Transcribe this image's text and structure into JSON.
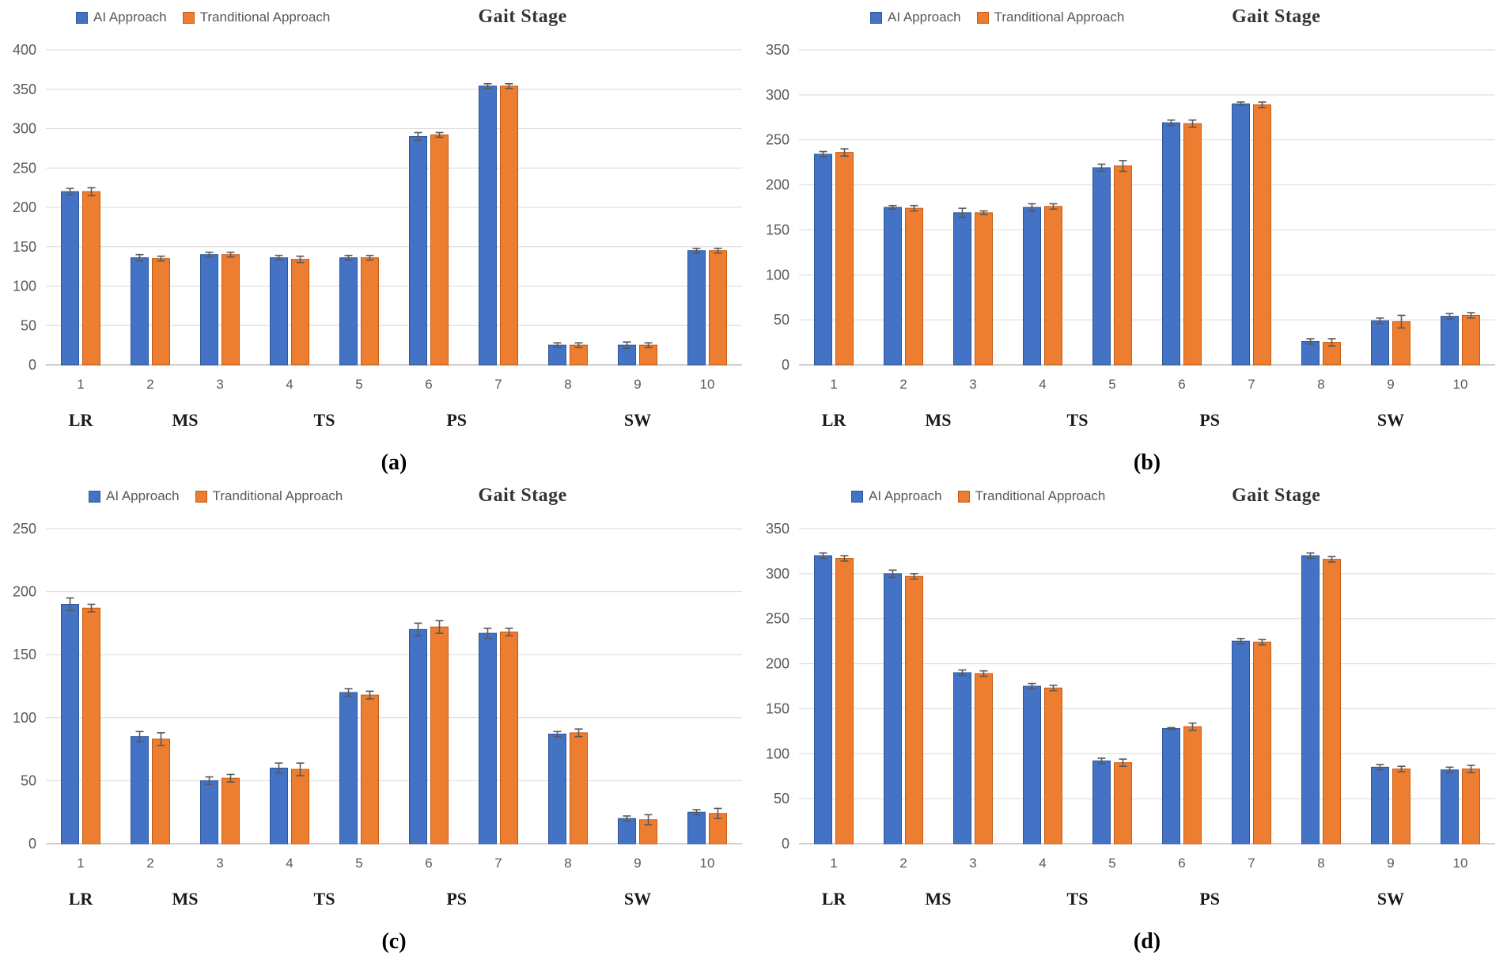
{
  "title": "Gait Stage",
  "legend": {
    "series1": "AI Approach",
    "series2": "Tranditional Approach"
  },
  "colors": {
    "blue_fill": "#4472C4",
    "blue_edge": "#2F5597",
    "orange_fill": "#ED7D31",
    "orange_edge": "#C55A11",
    "grid": "#D9D9D9",
    "baseline": "#BFBFBF",
    "axis_text": "#595959",
    "error_bar": "#595959",
    "title_text": "#333333",
    "label_text": "#1a1a1a"
  },
  "chart_data": [
    {
      "type": "bar",
      "panel_label": "(a)",
      "title": "Gait Stage",
      "categories": [
        "1",
        "2",
        "3",
        "4",
        "5",
        "6",
        "7",
        "8",
        "9",
        "10"
      ],
      "group_labels": [
        {
          "text": "LR",
          "at": 1
        },
        {
          "text": "MS",
          "at": 2.5
        },
        {
          "text": "TS",
          "at": 4.5
        },
        {
          "text": "PS",
          "at": 6.4
        },
        {
          "text": "SW",
          "at": 9
        }
      ],
      "ylim": [
        0,
        400
      ],
      "ytick_step": 50,
      "grid": true,
      "legend_position": "top-left",
      "series": [
        {
          "name": "AI Approach",
          "values": [
            220,
            136,
            140,
            136,
            136,
            290,
            354,
            25,
            25,
            145
          ],
          "errors": [
            4,
            4,
            3,
            3,
            3,
            5,
            3,
            3,
            4,
            3
          ]
        },
        {
          "name": "Tranditional Approach",
          "values": [
            220,
            135,
            140,
            134,
            136,
            292,
            354,
            25,
            25,
            145
          ],
          "errors": [
            5,
            3,
            3,
            4,
            3,
            3,
            3,
            3,
            3,
            3
          ]
        }
      ]
    },
    {
      "type": "bar",
      "panel_label": "(b)",
      "title": "Gait Stage",
      "categories": [
        "1",
        "2",
        "3",
        "4",
        "5",
        "6",
        "7",
        "8",
        "9",
        "10"
      ],
      "group_labels": [
        {
          "text": "LR",
          "at": 1
        },
        {
          "text": "MS",
          "at": 2.5
        },
        {
          "text": "TS",
          "at": 4.5
        },
        {
          "text": "PS",
          "at": 6.4
        },
        {
          "text": "SW",
          "at": 9
        }
      ],
      "ylim": [
        0,
        350
      ],
      "ytick_step": 50,
      "grid": true,
      "legend_position": "top-left",
      "series": [
        {
          "name": "AI Approach",
          "values": [
            234,
            175,
            169,
            175,
            219,
            269,
            290,
            26,
            49,
            54
          ],
          "errors": [
            3,
            2,
            5,
            4,
            4,
            3,
            2,
            3,
            3,
            3
          ]
        },
        {
          "name": "Tranditional Approach",
          "values": [
            236,
            174,
            169,
            176,
            221,
            268,
            289,
            25,
            48,
            55
          ],
          "errors": [
            4,
            3,
            2,
            3,
            6,
            4,
            3,
            4,
            7,
            3
          ]
        }
      ]
    },
    {
      "type": "bar",
      "panel_label": "(c)",
      "title": "Gait Stage",
      "categories": [
        "1",
        "2",
        "3",
        "4",
        "5",
        "6",
        "7",
        "8",
        "9",
        "10"
      ],
      "group_labels": [
        {
          "text": "LR",
          "at": 1
        },
        {
          "text": "MS",
          "at": 2.5
        },
        {
          "text": "TS",
          "at": 4.5
        },
        {
          "text": "PS",
          "at": 6.4
        },
        {
          "text": "SW",
          "at": 9
        }
      ],
      "ylim": [
        0,
        250
      ],
      "ytick_step": 50,
      "grid": true,
      "legend_position": "top-left",
      "series": [
        {
          "name": "AI Approach",
          "values": [
            190,
            85,
            50,
            60,
            120,
            170,
            167,
            87,
            20,
            25
          ],
          "errors": [
            5,
            4,
            3,
            4,
            3,
            5,
            4,
            2,
            2,
            2
          ]
        },
        {
          "name": "Tranditional Approach",
          "values": [
            187,
            83,
            52,
            59,
            118,
            172,
            168,
            88,
            19,
            24
          ],
          "errors": [
            3,
            5,
            3,
            5,
            3,
            5,
            3,
            3,
            4,
            4
          ]
        }
      ]
    },
    {
      "type": "bar",
      "panel_label": "(d)",
      "title": "Gait Stage",
      "categories": [
        "1",
        "2",
        "3",
        "4",
        "5",
        "6",
        "7",
        "8",
        "9",
        "10"
      ],
      "group_labels": [
        {
          "text": "LR",
          "at": 1
        },
        {
          "text": "MS",
          "at": 2.5
        },
        {
          "text": "TS",
          "at": 4.5
        },
        {
          "text": "PS",
          "at": 6.4
        },
        {
          "text": "SW",
          "at": 9
        }
      ],
      "ylim": [
        0,
        350
      ],
      "ytick_step": 50,
      "grid": true,
      "legend_position": "top-left",
      "series": [
        {
          "name": "AI Approach",
          "values": [
            320,
            300,
            190,
            175,
            92,
            128,
            225,
            320,
            85,
            82
          ],
          "errors": [
            3,
            4,
            3,
            3,
            3,
            1,
            3,
            3,
            3,
            3
          ]
        },
        {
          "name": "Tranditional Approach",
          "values": [
            317,
            297,
            189,
            173,
            90,
            130,
            224,
            316,
            83,
            83
          ],
          "errors": [
            3,
            3,
            3,
            3,
            4,
            4,
            3,
            3,
            3,
            4
          ]
        }
      ]
    }
  ]
}
